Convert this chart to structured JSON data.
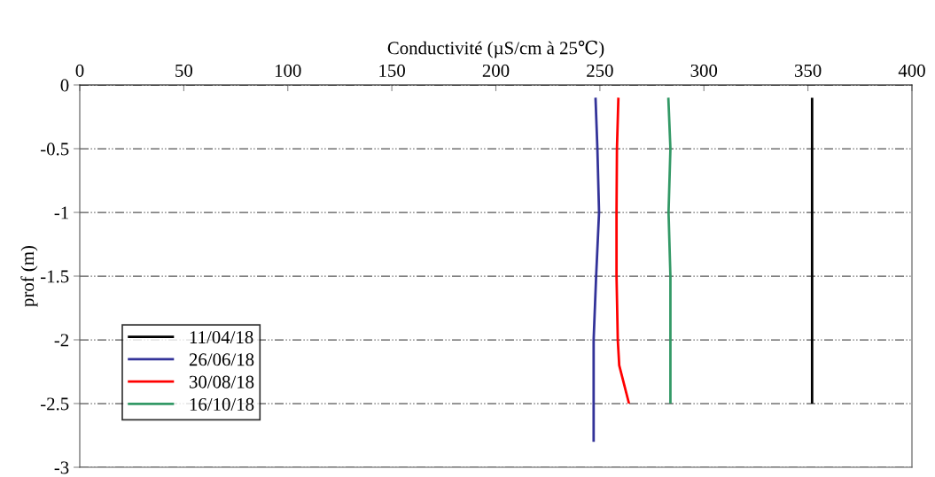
{
  "chart_data": {
    "type": "line",
    "xlabel": "Conductivité (µS/cm à 25℃)",
    "ylabel": "prof (m)",
    "xlim": [
      0,
      400
    ],
    "xticks": [
      0,
      50,
      100,
      150,
      200,
      250,
      300,
      350,
      400
    ],
    "ylim": [
      -3,
      0
    ],
    "yticks": [
      -3,
      -2.5,
      -2,
      -1.5,
      -1,
      -0.5,
      0
    ],
    "grid": "y",
    "legend": "bottom left",
    "marker": "none",
    "line_style": "solid",
    "series": [
      {
        "name": "11/04/18",
        "color": "#000000",
        "x": [
          352,
          352,
          352,
          352,
          352,
          352
        ],
        "values": [
          -0.1,
          -0.5,
          -1,
          -1.5,
          -2,
          -2.5
        ]
      },
      {
        "name": "26/06/18",
        "color": "#333399",
        "x": [
          247.9,
          248.8,
          249.6,
          248.2,
          247,
          247,
          247
        ],
        "values": [
          -0.1,
          -0.5,
          -1,
          -1.5,
          -2,
          -2.5,
          -2.8
        ]
      },
      {
        "name": "30/08/18",
        "color": "#ff0000",
        "x": [
          258.9,
          258.2,
          258,
          258,
          258.6,
          259.3,
          264
        ],
        "values": [
          -0.1,
          -0.5,
          -1,
          -1.5,
          -2,
          -2.2,
          -2.5
        ]
      },
      {
        "name": "16/10/18",
        "color": "#339966",
        "x": [
          282.9,
          283.9,
          283,
          283.9,
          283.9,
          283.9
        ],
        "values": [
          -0.1,
          -0.5,
          -1,
          -1.5,
          -2,
          -2.5
        ]
      }
    ]
  }
}
